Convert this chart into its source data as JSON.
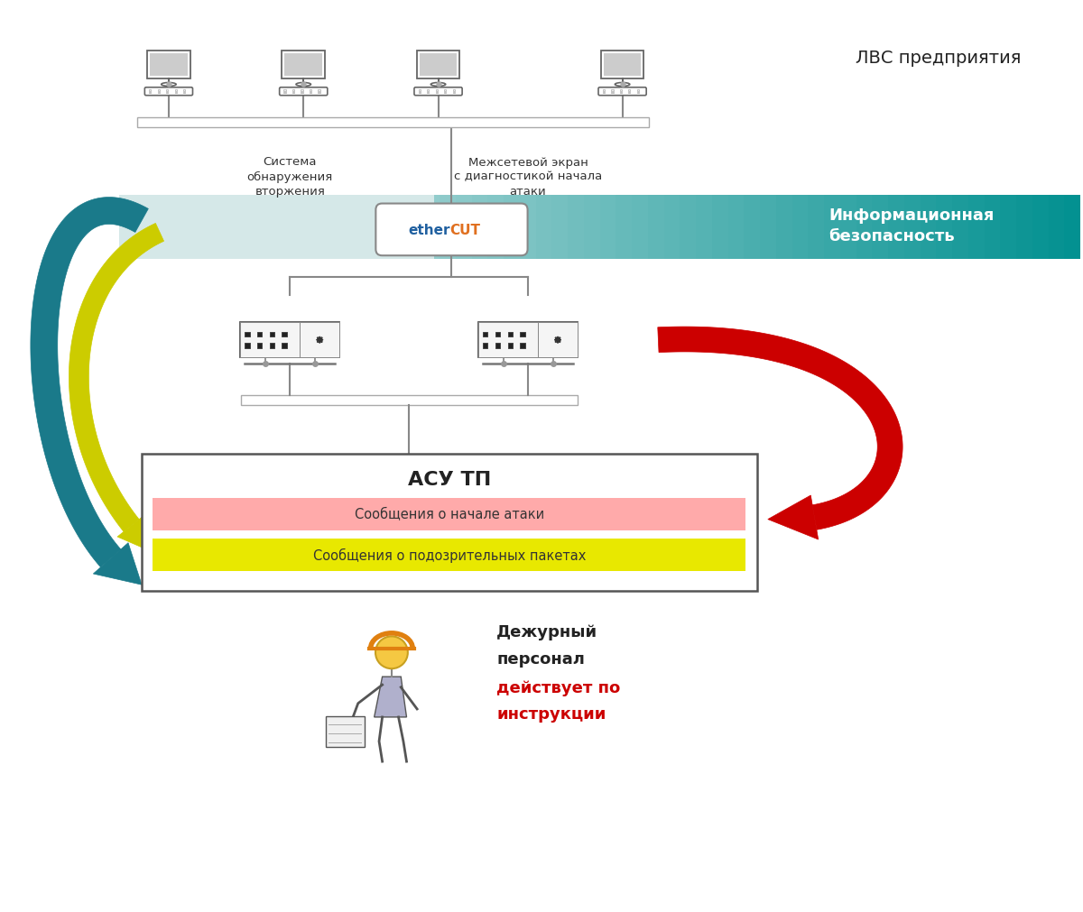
{
  "bg_color": "#ffffff",
  "lvs_label": "ЛВС предприятия",
  "ethercut_label_ether": "ether",
  "ethercut_label_cut": "CUT",
  "info_sec_label": "Информационная\nбезопасность",
  "ids_label": "Система\nобнаружения\nвторжения",
  "firewall_label": "Межсетевой экран\nс диагностикой начала\nатаки",
  "asu_label": "АСУ ТП",
  "msg1_label": "Сообщения о начале атаки",
  "msg2_label": "Сообщения о подозрительных пакетах",
  "duty_label1": "Дежурный",
  "duty_label2": "персонал",
  "duty_label3": "действует по",
  "duty_label4": "инструкции",
  "teal_arrow_color": "#1a7a8a",
  "yellow_arrow_color": "#cccc00",
  "red_arrow_color": "#cc0000",
  "msg1_bg": "#ffaaaa",
  "msg2_bg": "#e8e800",
  "ethercut_ether_color": "#2060a0",
  "ethercut_cut_color": "#e07020",
  "duty_red_color": "#cc0000",
  "duty_black_color": "#222222"
}
